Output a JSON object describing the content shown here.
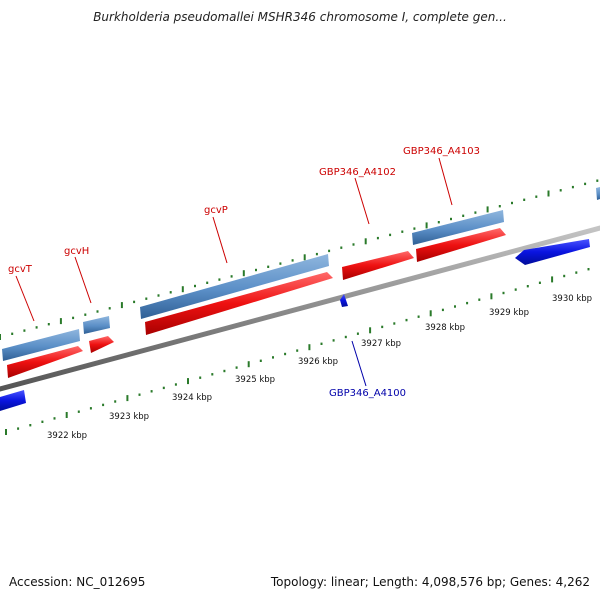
{
  "title": "Burkholderia pseudomallei MSHR346 chromosome I, complete gen...",
  "footer": {
    "accession": "Accession: NC_012695",
    "summary": "Topology: linear; Length: 4,098,576 bp; Genes: 4,262"
  },
  "colors": {
    "gene_label": "#cc0000",
    "reverse_label": "#0000aa",
    "cds_bar": "#5b8fc7",
    "forward_arrow": "#ee1111",
    "reverse_arrow": "#0a14e0",
    "backbone": "#8c8c8c",
    "tick": "#2a7a2a"
  },
  "labels": {
    "gcvT": "gcvT",
    "gcvH": "gcvH",
    "gcvP": "gcvP",
    "a4102": "GBP346_A4102",
    "a4103": "GBP346_A4103",
    "a4100": "GBP346_A4100"
  },
  "scale": {
    "k3922": "3922 kbp",
    "k3923": "3923 kbp",
    "k3924": "3924 kbp",
    "k3925": "3925 kbp",
    "k3926": "3926 kbp",
    "k3927": "3927 kbp",
    "k3928": "3928 kbp",
    "k3929": "3929 kbp",
    "k3930": "3930 kbp"
  }
}
